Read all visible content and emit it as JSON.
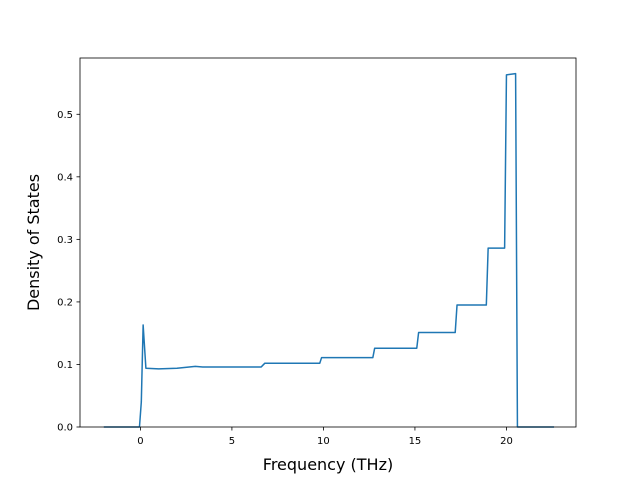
{
  "chart_data": {
    "type": "line",
    "title": "",
    "xlabel": "Frequency (THz)",
    "ylabel": "Density of States",
    "xlim": [
      -3.3,
      23.8
    ],
    "ylim": [
      0.0,
      0.59
    ],
    "xticks": [
      0,
      5,
      10,
      15,
      20
    ],
    "yticks": [
      0.0,
      0.1,
      0.2,
      0.3,
      0.4,
      0.5
    ],
    "xtick_labels": [
      "0",
      "5",
      "10",
      "15",
      "20"
    ],
    "ytick_labels": [
      "0.0",
      "0.1",
      "0.2",
      "0.3",
      "0.4",
      "0.5"
    ],
    "grid": false,
    "line_color": "#1f77b4",
    "series": [
      {
        "x": [
          -2.0,
          -0.05,
          0.05,
          0.15,
          0.3,
          1.0,
          2.0,
          3.0,
          3.4,
          3.6,
          6.6,
          6.8,
          9.8,
          9.9,
          12.7,
          12.8,
          15.1,
          15.2,
          17.2,
          17.3,
          18.9,
          19.0,
          19.9,
          20.0,
          20.5,
          20.6,
          22.6
        ],
        "y": [
          0.0,
          0.0,
          0.04,
          0.163,
          0.094,
          0.093,
          0.094,
          0.097,
          0.096,
          0.096,
          0.096,
          0.102,
          0.102,
          0.111,
          0.111,
          0.126,
          0.126,
          0.151,
          0.151,
          0.195,
          0.195,
          0.286,
          0.286,
          0.563,
          0.565,
          0.0,
          0.0
        ]
      }
    ]
  }
}
